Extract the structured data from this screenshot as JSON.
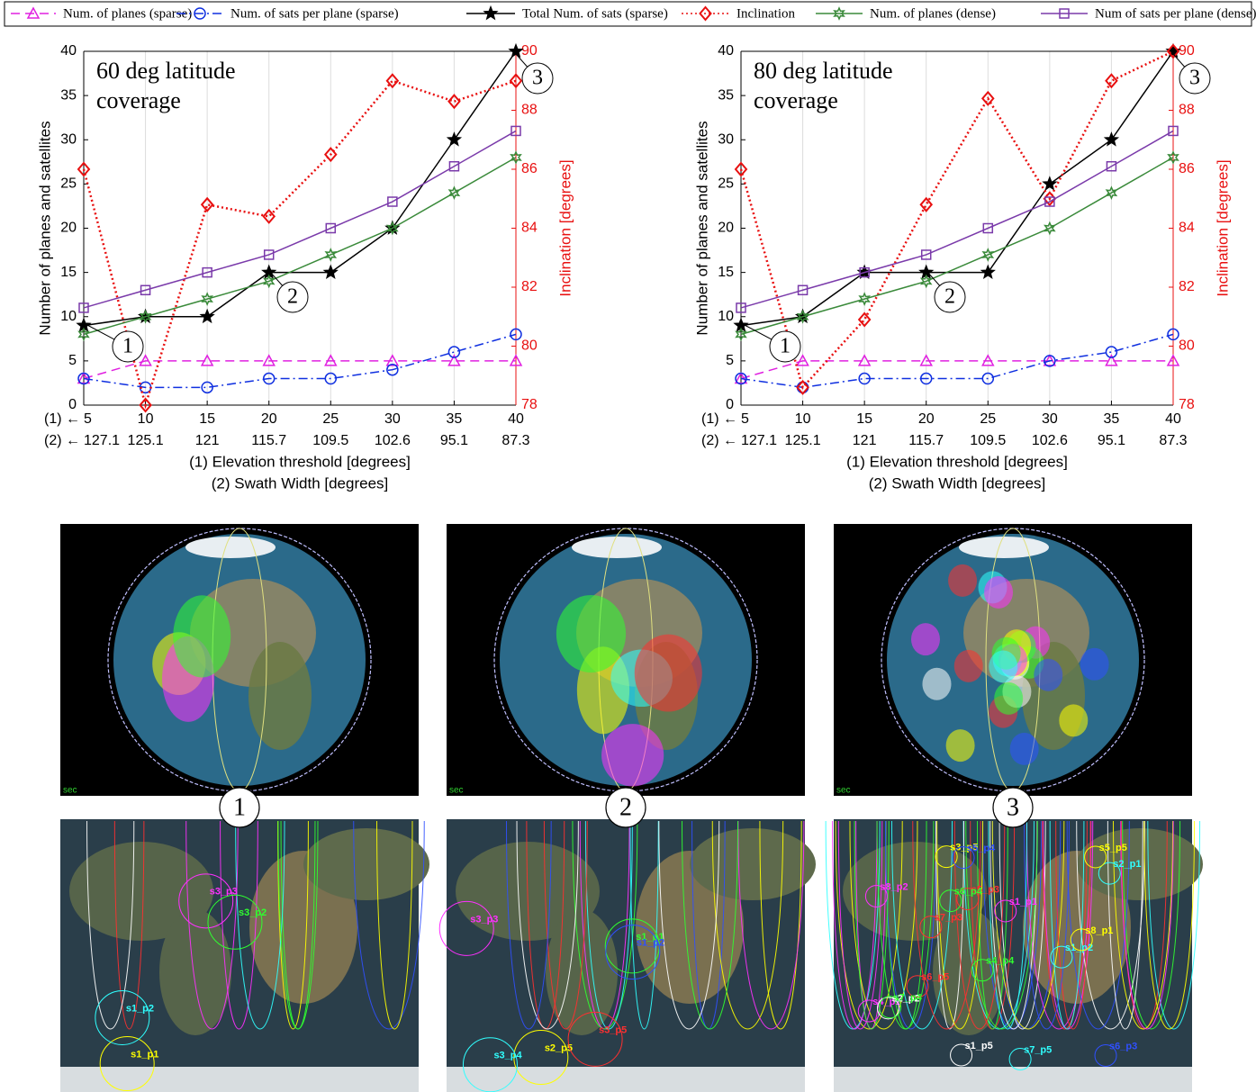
{
  "chart_data": [
    {
      "type": "line",
      "annotation": [
        "60 deg latitude",
        "coverage"
      ],
      "callouts": [
        "1",
        "2",
        "3"
      ],
      "x": [
        5,
        10,
        15,
        20,
        25,
        30,
        35,
        40
      ],
      "x_row_prefixes": [
        "(1) ←",
        "(2) ←"
      ],
      "x2_labels": [
        "127.1",
        "125.1",
        "121",
        "115.7",
        "109.5",
        "102.6",
        "95.1",
        "87.3"
      ],
      "xlabel": [
        "(1) Elevation threshold [degrees]",
        "(2) Swath Width [degrees]"
      ],
      "ylabel": "Number of planes and satellites",
      "y2label": "Inclination [degrees]",
      "xlim": [
        5,
        40
      ],
      "xticks": [
        5,
        10,
        15,
        20,
        25,
        30,
        35,
        40
      ],
      "ylim": [
        0,
        40
      ],
      "yticks": [
        0,
        5,
        10,
        15,
        20,
        25,
        30,
        35,
        40
      ],
      "y2lim": [
        78,
        90
      ],
      "y2ticks": [
        78,
        80,
        82,
        84,
        86,
        88,
        90
      ],
      "grid": "x",
      "series": [
        {
          "name": "Num. of planes (sparse)",
          "color": "#e020e0",
          "marker": "triangle",
          "dash": "dashed",
          "values": [
            3,
            5,
            5,
            5,
            5,
            5,
            5,
            5
          ]
        },
        {
          "name": "Num. of sats per plane (sparse)",
          "color": "#1030e0",
          "marker": "circle",
          "dash": "dashdot",
          "values": [
            3,
            2,
            2,
            3,
            3,
            4,
            6,
            8
          ]
        },
        {
          "name": "Total Num. of sats (sparse)",
          "color": "#000000",
          "marker": "star",
          "dash": "solid",
          "values": [
            9,
            10,
            10,
            15,
            15,
            20,
            30,
            40
          ]
        },
        {
          "name": "Inclination",
          "color": "#e81010",
          "marker": "diamond",
          "dash": "dotted",
          "axis": "y2",
          "values": [
            86,
            78,
            84.8,
            84.4,
            86.5,
            89,
            88.3,
            89
          ]
        },
        {
          "name": "Num. of planes (dense)",
          "color": "#3a8a3a",
          "marker": "hexstar",
          "dash": "solid",
          "values": [
            8,
            10,
            12,
            14,
            17,
            20,
            24,
            28
          ]
        },
        {
          "name": "Num of sats per plane (dense)",
          "color": "#7a3aaa",
          "marker": "square",
          "dash": "solid",
          "values": [
            11,
            13,
            15,
            17,
            20,
            23,
            27,
            31
          ]
        }
      ]
    },
    {
      "type": "line",
      "annotation": [
        "80 deg latitude",
        "coverage"
      ],
      "callouts": [
        "1",
        "2",
        "3"
      ],
      "x": [
        5,
        10,
        15,
        20,
        25,
        30,
        35,
        40
      ],
      "x_row_prefixes": [
        "(1) ←",
        "(2) ←"
      ],
      "x2_labels": [
        "127.1",
        "125.1",
        "121",
        "115.7",
        "109.5",
        "102.6",
        "95.1",
        "87.3"
      ],
      "xlabel": [
        "(1) Elevation threshold [degrees]",
        "(2) Swath Width [degrees]"
      ],
      "ylabel": "Number of planes and satellites",
      "y2label": "Inclination [degrees]",
      "xlim": [
        5,
        40
      ],
      "xticks": [
        5,
        10,
        15,
        20,
        25,
        30,
        35,
        40
      ],
      "ylim": [
        0,
        40
      ],
      "yticks": [
        0,
        5,
        10,
        15,
        20,
        25,
        30,
        35,
        40
      ],
      "y2lim": [
        78,
        90
      ],
      "y2ticks": [
        78,
        80,
        82,
        84,
        86,
        88,
        90
      ],
      "grid": "x",
      "series": [
        {
          "color": "#e020e0",
          "marker": "triangle",
          "dash": "dashed",
          "values": [
            3,
            5,
            5,
            5,
            5,
            5,
            5,
            5
          ]
        },
        {
          "color": "#1030e0",
          "marker": "circle",
          "dash": "dashdot",
          "values": [
            3,
            2,
            3,
            3,
            3,
            5,
            6,
            8
          ]
        },
        {
          "color": "#000000",
          "marker": "star",
          "dash": "solid",
          "values": [
            9,
            10,
            15,
            15,
            15,
            25,
            30,
            40
          ]
        },
        {
          "color": "#e81010",
          "marker": "diamond",
          "dash": "dotted",
          "axis": "y2",
          "values": [
            86,
            78.6,
            80.9,
            84.8,
            88.4,
            85,
            89,
            90
          ]
        },
        {
          "color": "#3a8a3a",
          "marker": "hexstar",
          "dash": "solid",
          "values": [
            8,
            10,
            12,
            14,
            17,
            20,
            24,
            28
          ]
        },
        {
          "color": "#7a3aaa",
          "marker": "square",
          "dash": "solid",
          "values": [
            11,
            13,
            15,
            17,
            20,
            23,
            27,
            31
          ]
        }
      ]
    }
  ],
  "panels": [
    {
      "label": "1",
      "clock": "sec",
      "sat_labels": [
        "s1_p1",
        "s3_p3",
        "s3_p2",
        "s1_p2"
      ]
    },
    {
      "label": "2",
      "clock": "sec",
      "sat_labels": [
        "s2_p5",
        "s3_p3",
        "s1_p1",
        "s3_p4",
        "s3_p5",
        "s1_p2"
      ]
    },
    {
      "label": "3",
      "clock": "sec",
      "sat_labels": [
        "s3_p5",
        "s4_p1",
        "s4_p4",
        "s2_p1",
        "s5_p3",
        "s5_p4",
        "s2_p2",
        "s5_p5",
        "s1_p1",
        "s6_p4",
        "s1_p2",
        "s6_p5",
        "s6_p3",
        "s1_p5",
        "s8_p1",
        "s8_p2",
        "s7_p4",
        "s7_p5",
        "s7_p3"
      ]
    }
  ]
}
